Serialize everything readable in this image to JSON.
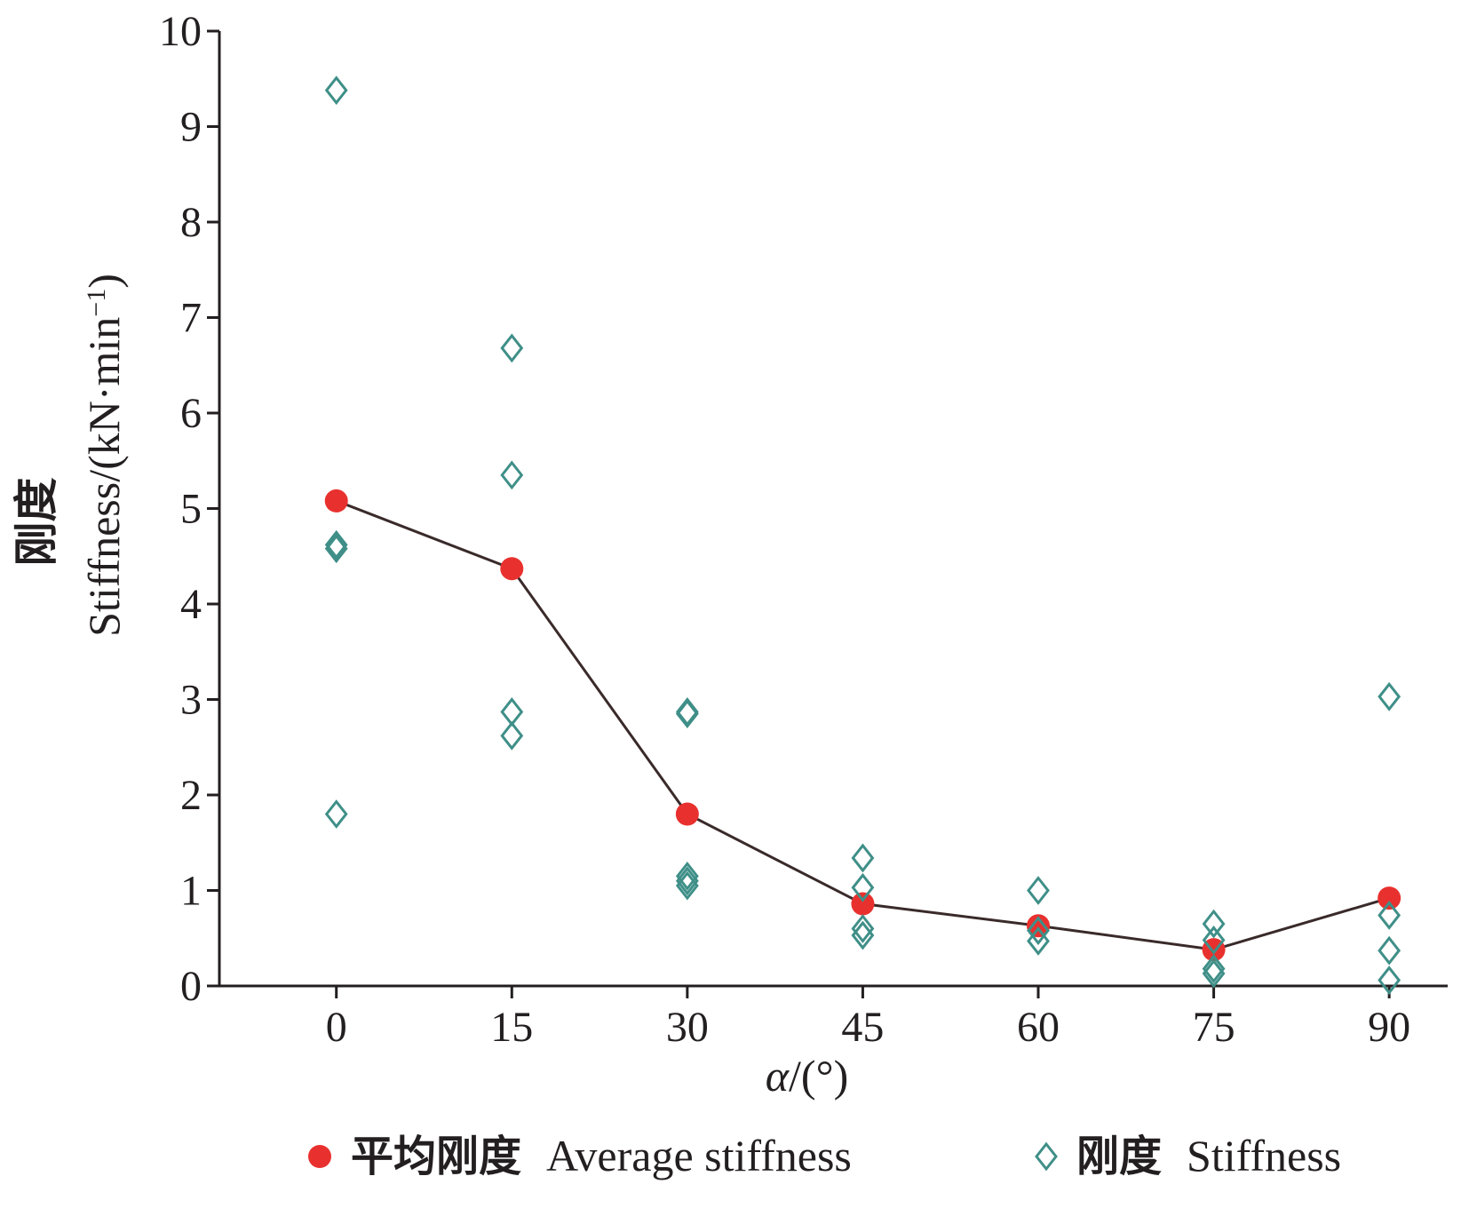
{
  "chart_data": {
    "type": "scatter",
    "xlabel": {
      "symbol": "α",
      "unit": "/(°)"
    },
    "ylabel": {
      "cn": "刚度",
      "en": "Stiffness/(kN·min",
      "sup": "−1",
      "close": ")"
    },
    "xlim": [
      -10,
      95
    ],
    "ylim": [
      0,
      10
    ],
    "x_ticks": [
      {
        "value": 0,
        "label": "0"
      },
      {
        "value": 15,
        "label": "15"
      },
      {
        "value": 30,
        "label": "30"
      },
      {
        "value": 45,
        "label": "45"
      },
      {
        "value": 60,
        "label": "60"
      },
      {
        "value": 75,
        "label": "75"
      },
      {
        "value": 90,
        "label": "90"
      }
    ],
    "y_ticks": [
      {
        "value": 0,
        "label": "0"
      },
      {
        "value": 1,
        "label": "1"
      },
      {
        "value": 2,
        "label": "2"
      },
      {
        "value": 3,
        "label": "3"
      },
      {
        "value": 4,
        "label": "4"
      },
      {
        "value": 5,
        "label": "5"
      },
      {
        "value": 6,
        "label": "6"
      },
      {
        "value": 7,
        "label": "7"
      },
      {
        "value": 8,
        "label": "8"
      },
      {
        "value": 9,
        "label": "9"
      },
      {
        "value": 10,
        "label": "10"
      }
    ],
    "legend_position": "bottom",
    "series": [
      {
        "name": "平均刚度  Average stiffness",
        "marker": "filled-circle",
        "line": true,
        "color": "#e8312e",
        "line_color": "#3a2a2a",
        "points": [
          {
            "x": 0,
            "y": 5.08
          },
          {
            "x": 15,
            "y": 4.37
          },
          {
            "x": 30,
            "y": 1.8
          },
          {
            "x": 45,
            "y": 0.86
          },
          {
            "x": 60,
            "y": 0.63
          },
          {
            "x": 75,
            "y": 0.38
          },
          {
            "x": 90,
            "y": 0.92
          }
        ]
      },
      {
        "name": "刚度  Stiffness",
        "marker": "open-diamond",
        "line": false,
        "color": "#3f8f88",
        "points": [
          {
            "x": 0,
            "y": 9.38
          },
          {
            "x": 0,
            "y": 4.62
          },
          {
            "x": 0,
            "y": 4.58
          },
          {
            "x": 0,
            "y": 1.8
          },
          {
            "x": 15,
            "y": 6.68
          },
          {
            "x": 15,
            "y": 5.35
          },
          {
            "x": 15,
            "y": 2.87
          },
          {
            "x": 15,
            "y": 2.62
          },
          {
            "x": 30,
            "y": 2.87
          },
          {
            "x": 30,
            "y": 2.85
          },
          {
            "x": 30,
            "y": 1.15
          },
          {
            "x": 30,
            "y": 1.1
          },
          {
            "x": 30,
            "y": 1.05
          },
          {
            "x": 45,
            "y": 1.34
          },
          {
            "x": 45,
            "y": 1.03
          },
          {
            "x": 45,
            "y": 0.6
          },
          {
            "x": 45,
            "y": 0.53
          },
          {
            "x": 60,
            "y": 1.0
          },
          {
            "x": 60,
            "y": 0.58
          },
          {
            "x": 60,
            "y": 0.47
          },
          {
            "x": 75,
            "y": 0.65
          },
          {
            "x": 75,
            "y": 0.48
          },
          {
            "x": 75,
            "y": 0.18
          },
          {
            "x": 75,
            "y": 0.13
          },
          {
            "x": 90,
            "y": 3.03
          },
          {
            "x": 90,
            "y": 0.74
          },
          {
            "x": 90,
            "y": 0.37
          },
          {
            "x": 90,
            "y": 0.06
          }
        ]
      }
    ]
  }
}
